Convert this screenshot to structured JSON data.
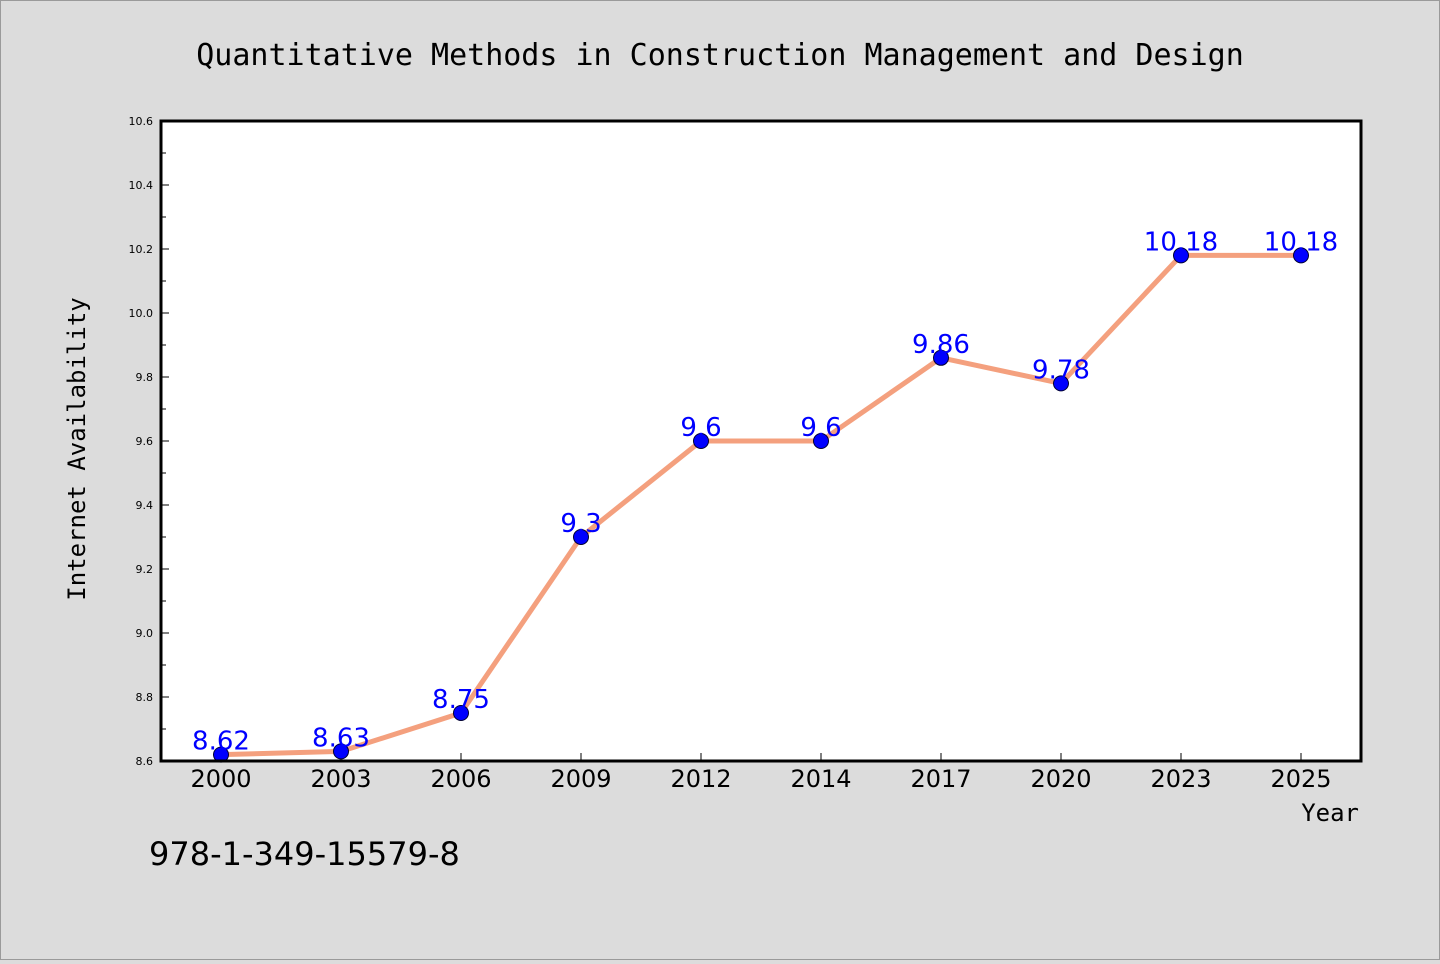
{
  "chart_data": {
    "type": "line",
    "title": "Quantitative Methods in Construction Management and Design",
    "xlabel": "Year",
    "ylabel": "Internet Availability",
    "categories": [
      "2000",
      "2003",
      "2006",
      "2009",
      "2012",
      "2014",
      "2017",
      "2020",
      "2023",
      "2025"
    ],
    "series": [
      {
        "values": [
          8.62,
          8.63,
          8.75,
          9.3,
          9.6,
          9.6,
          9.86,
          9.78,
          10.18,
          10.18
        ],
        "line_color": "#f4a07e",
        "marker_color": "#0000ff"
      }
    ],
    "data_labels": [
      "8.62",
      "8.63",
      "8.75",
      "9.3",
      "9.6",
      "9.6",
      "9.86",
      "9.78",
      "10.18",
      "10.18"
    ],
    "ylim": [
      8.6,
      10.6
    ],
    "yticks": [
      "8.6",
      "8.8",
      "9.0",
      "9.2",
      "9.4",
      "9.6",
      "9.8",
      "10.0",
      "10.2",
      "10.4",
      "10.6"
    ],
    "grid": false,
    "legend": "none"
  },
  "footer_text": "978-1-349-15579-8",
  "colors": {
    "background": "#dcdcdc",
    "plot_background": "#ffffff",
    "line": "#f4a07e",
    "marker": "#0000ff",
    "data_label": "#0000ff"
  }
}
